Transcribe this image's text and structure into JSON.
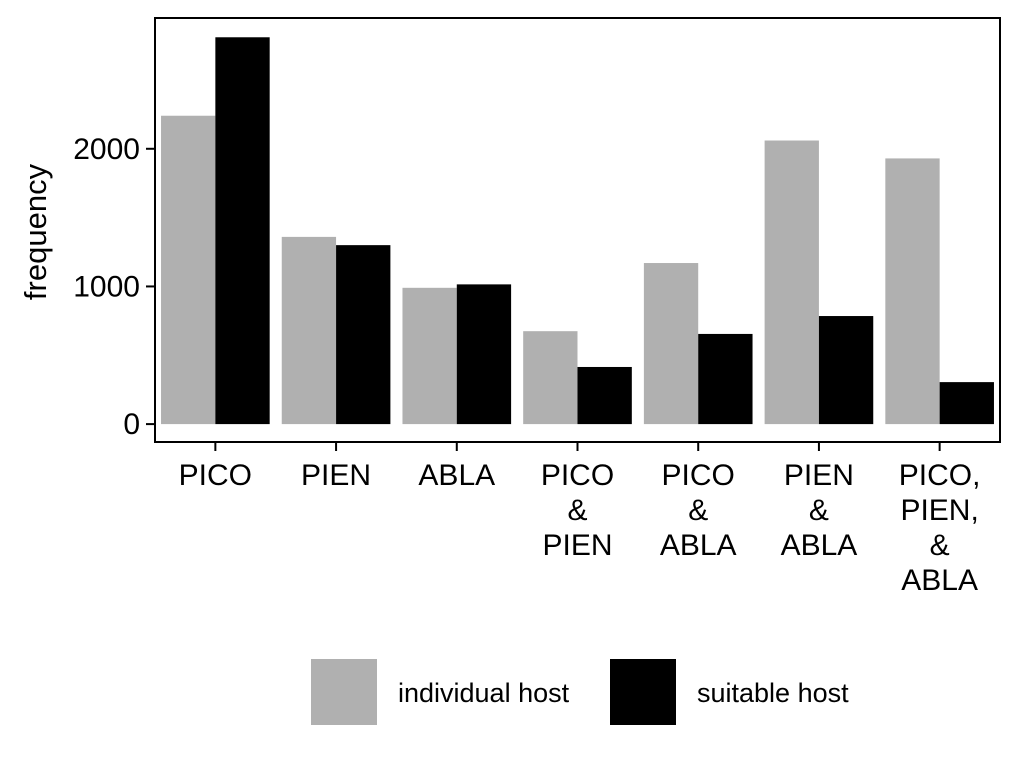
{
  "chart_data": {
    "type": "bar",
    "title": "",
    "xlabel": "",
    "ylabel": "frequency",
    "ylim": [
      -130,
      2950
    ],
    "yticks": [
      0,
      1000,
      2000
    ],
    "categories": [
      [
        "PICO"
      ],
      [
        "PIEN"
      ],
      [
        "ABLA"
      ],
      [
        "PICO",
        "&",
        "PIEN"
      ],
      [
        "PICO",
        "&",
        "ABLA"
      ],
      [
        "PIEN",
        "&",
        "ABLA"
      ],
      [
        "PICO,",
        "PIEN,",
        "&",
        "ABLA"
      ]
    ],
    "series": [
      {
        "name": "individual host",
        "color": "#b0b0b0",
        "values": [
          2240,
          1360,
          990,
          675,
          1170,
          2060,
          1930
        ]
      },
      {
        "name": "suitable host",
        "color": "#000000",
        "values": [
          2810,
          1300,
          1015,
          415,
          655,
          785,
          305
        ]
      }
    ],
    "grid": false,
    "legend_position": "bottom"
  }
}
